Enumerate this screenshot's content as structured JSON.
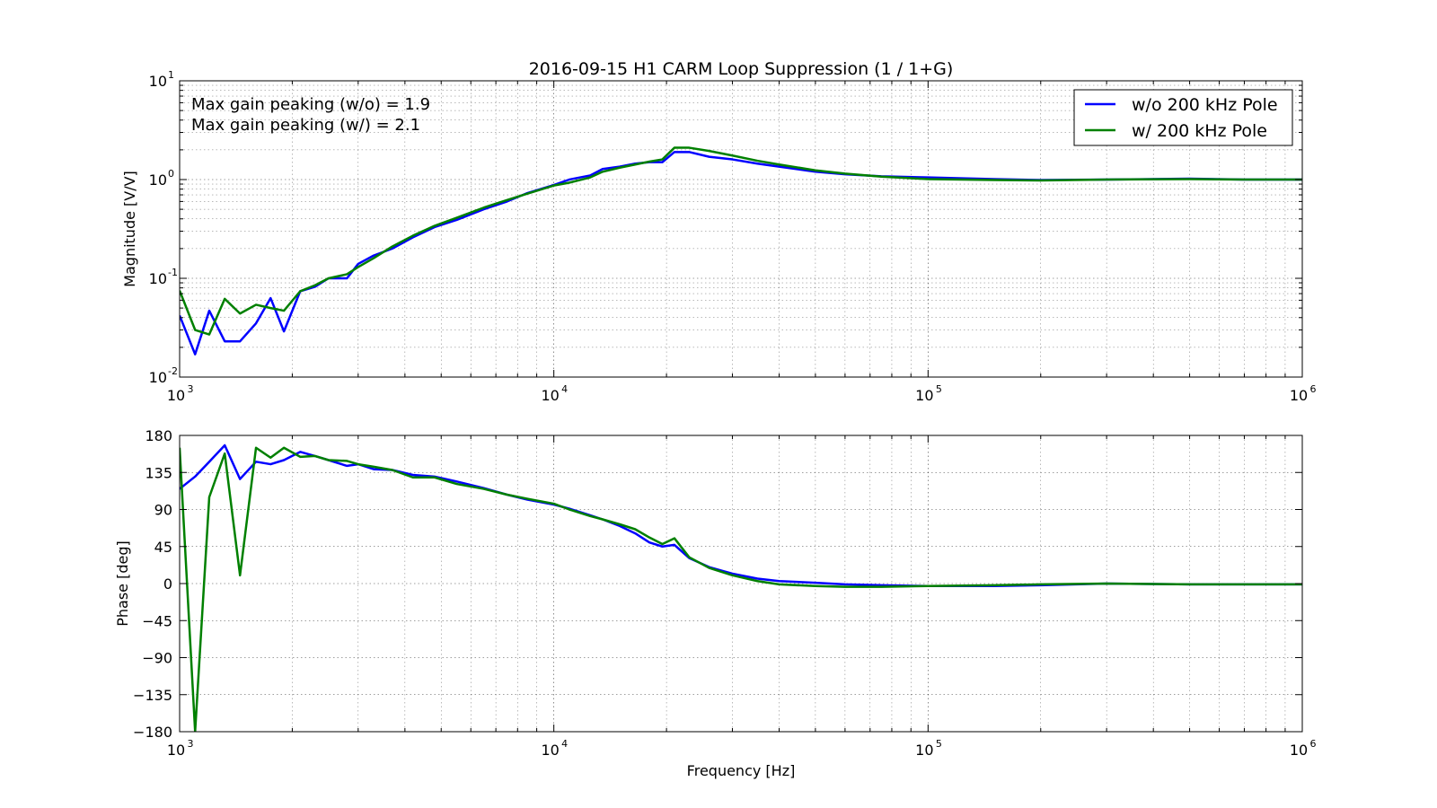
{
  "chart_data": [
    {
      "type": "line",
      "title": "2016-09-15 H1 CARM Loop Suppression (1 / 1+G)",
      "xlabel": "",
      "ylabel": "Magnitude [V/V]",
      "xscale": "log",
      "yscale": "log",
      "xlim": [
        1000,
        1000000
      ],
      "ylim": [
        0.01,
        10
      ],
      "grid": true,
      "legend_placement": "top-right",
      "x_ticks": [
        {
          "base": "10",
          "exp": "3"
        },
        {
          "base": "10",
          "exp": "4"
        },
        {
          "base": "10",
          "exp": "5"
        },
        {
          "base": "10",
          "exp": "6"
        }
      ],
      "y_ticks": [
        {
          "base": "10",
          "exp": "-2"
        },
        {
          "base": "10",
          "exp": "-1"
        },
        {
          "base": "10",
          "exp": "0"
        },
        {
          "base": "10",
          "exp": "1"
        }
      ],
      "annotations": [
        "Max gain peaking (w/o) = 1.9",
        "Max gain peaking (w/) = 2.1"
      ],
      "series": [
        {
          "name": "w/o 200 kHz Pole",
          "color": "#0000ff",
          "points": [
            [
              1000,
              0.042
            ],
            [
              1100,
              0.017
            ],
            [
              1200,
              0.047
            ],
            [
              1320,
              0.023
            ],
            [
              1450,
              0.023
            ],
            [
              1600,
              0.035
            ],
            [
              1750,
              0.063
            ],
            [
              1900,
              0.029
            ],
            [
              2100,
              0.074
            ],
            [
              2300,
              0.082
            ],
            [
              2500,
              0.1
            ],
            [
              2800,
              0.1
            ],
            [
              3000,
              0.14
            ],
            [
              3300,
              0.17
            ],
            [
              3700,
              0.2
            ],
            [
              4200,
              0.26
            ],
            [
              4800,
              0.33
            ],
            [
              5500,
              0.39
            ],
            [
              6500,
              0.5
            ],
            [
              7500,
              0.6
            ],
            [
              8500,
              0.73
            ],
            [
              10000,
              0.88
            ],
            [
              11000,
              1.0
            ],
            [
              12500,
              1.1
            ],
            [
              13500,
              1.28
            ],
            [
              15000,
              1.35
            ],
            [
              16500,
              1.45
            ],
            [
              18000,
              1.5
            ],
            [
              19500,
              1.5
            ],
            [
              21000,
              1.9
            ],
            [
              23000,
              1.9
            ],
            [
              26000,
              1.7
            ],
            [
              30000,
              1.6
            ],
            [
              35000,
              1.45
            ],
            [
              40000,
              1.35
            ],
            [
              50000,
              1.2
            ],
            [
              60000,
              1.13
            ],
            [
              75000,
              1.08
            ],
            [
              100000,
              1.05
            ],
            [
              150000,
              1.01
            ],
            [
              200000,
              0.99
            ],
            [
              300000,
              1.0
            ],
            [
              500000,
              1.02
            ],
            [
              700000,
              1.0
            ],
            [
              1000000,
              1.0
            ]
          ]
        },
        {
          "name": "w/ 200 kHz Pole",
          "color": "#008000",
          "points": [
            [
              1000,
              0.075
            ],
            [
              1100,
              0.03
            ],
            [
              1200,
              0.027
            ],
            [
              1320,
              0.062
            ],
            [
              1450,
              0.044
            ],
            [
              1600,
              0.054
            ],
            [
              1750,
              0.05
            ],
            [
              1900,
              0.047
            ],
            [
              2100,
              0.074
            ],
            [
              2300,
              0.085
            ],
            [
              2500,
              0.1
            ],
            [
              2800,
              0.11
            ],
            [
              3000,
              0.13
            ],
            [
              3300,
              0.16
            ],
            [
              3700,
              0.21
            ],
            [
              4200,
              0.27
            ],
            [
              4800,
              0.34
            ],
            [
              5500,
              0.41
            ],
            [
              6500,
              0.52
            ],
            [
              7500,
              0.62
            ],
            [
              8500,
              0.72
            ],
            [
              10000,
              0.87
            ],
            [
              11000,
              0.93
            ],
            [
              12500,
              1.05
            ],
            [
              13500,
              1.2
            ],
            [
              15000,
              1.32
            ],
            [
              16500,
              1.42
            ],
            [
              18000,
              1.52
            ],
            [
              19500,
              1.6
            ],
            [
              21000,
              2.1
            ],
            [
              23000,
              2.1
            ],
            [
              26000,
              1.95
            ],
            [
              30000,
              1.75
            ],
            [
              35000,
              1.55
            ],
            [
              40000,
              1.42
            ],
            [
              50000,
              1.24
            ],
            [
              60000,
              1.15
            ],
            [
              75000,
              1.07
            ],
            [
              100000,
              1.01
            ],
            [
              150000,
              0.99
            ],
            [
              200000,
              0.98
            ],
            [
              300000,
              1.0
            ],
            [
              500000,
              1.01
            ],
            [
              700000,
              1.0
            ],
            [
              1000000,
              1.0
            ]
          ]
        }
      ]
    },
    {
      "type": "line",
      "title": "",
      "xlabel": "Frequency [Hz]",
      "ylabel": "Phase [deg]",
      "xscale": "log",
      "xlim": [
        1000,
        1000000
      ],
      "ylim": [
        -180,
        180
      ],
      "grid": true,
      "x_ticks": [
        {
          "base": "10",
          "exp": "3"
        },
        {
          "base": "10",
          "exp": "4"
        },
        {
          "base": "10",
          "exp": "5"
        },
        {
          "base": "10",
          "exp": "6"
        }
      ],
      "y_ticks": [
        "−180",
        "−135",
        "−90",
        "−45",
        "0",
        "45",
        "90",
        "135",
        "180"
      ],
      "y_tick_values": [
        -180,
        -135,
        -90,
        -45,
        0,
        45,
        90,
        135,
        180
      ],
      "series": [
        {
          "name": "w/o 200 kHz Pole",
          "color": "#0000ff",
          "points": [
            [
              1000,
              115
            ],
            [
              1100,
              130
            ],
            [
              1200,
              148
            ],
            [
              1320,
              168
            ],
            [
              1450,
              127
            ],
            [
              1600,
              148
            ],
            [
              1750,
              145
            ],
            [
              1900,
              150
            ],
            [
              2100,
              160
            ],
            [
              2300,
              155
            ],
            [
              2500,
              150
            ],
            [
              2800,
              143
            ],
            [
              3000,
              145
            ],
            [
              3300,
              139
            ],
            [
              3700,
              138
            ],
            [
              4200,
              132
            ],
            [
              4800,
              130
            ],
            [
              5500,
              124
            ],
            [
              6500,
              116
            ],
            [
              7500,
              108
            ],
            [
              8500,
              102
            ],
            [
              10000,
              96
            ],
            [
              11000,
              91
            ],
            [
              12500,
              83
            ],
            [
              13500,
              78
            ],
            [
              15000,
              70
            ],
            [
              16500,
              61
            ],
            [
              18000,
              50
            ],
            [
              19500,
              45
            ],
            [
              21000,
              47
            ],
            [
              23000,
              31
            ],
            [
              26000,
              20
            ],
            [
              30000,
              12
            ],
            [
              35000,
              6
            ],
            [
              40000,
              3
            ],
            [
              50000,
              1
            ],
            [
              60000,
              -1
            ],
            [
              75000,
              -2
            ],
            [
              100000,
              -3
            ],
            [
              150000,
              -3
            ],
            [
              200000,
              -2
            ],
            [
              300000,
              0
            ],
            [
              500000,
              -1
            ],
            [
              700000,
              -1
            ],
            [
              1000000,
              -1
            ]
          ]
        },
        {
          "name": "w/ 200 kHz Pole",
          "color": "#008000",
          "points": [
            [
              1000,
              165
            ],
            [
              1100,
              -180
            ],
            [
              1200,
              105
            ],
            [
              1320,
              158
            ],
            [
              1450,
              10
            ],
            [
              1600,
              165
            ],
            [
              1750,
              153
            ],
            [
              1900,
              165
            ],
            [
              2100,
              154
            ],
            [
              2300,
              155
            ],
            [
              2500,
              150
            ],
            [
              2800,
              149
            ],
            [
              3000,
              145
            ],
            [
              3300,
              142
            ],
            [
              3700,
              138
            ],
            [
              4200,
              129
            ],
            [
              4800,
              129
            ],
            [
              5500,
              121
            ],
            [
              6500,
              115
            ],
            [
              7500,
              108
            ],
            [
              8500,
              103
            ],
            [
              10000,
              97
            ],
            [
              11000,
              90
            ],
            [
              12500,
              82
            ],
            [
              13500,
              78
            ],
            [
              15000,
              72
            ],
            [
              16500,
              66
            ],
            [
              18000,
              56
            ],
            [
              19500,
              48
            ],
            [
              21000,
              55
            ],
            [
              23000,
              32
            ],
            [
              26000,
              19
            ],
            [
              30000,
              10
            ],
            [
              35000,
              3
            ],
            [
              40000,
              -1
            ],
            [
              50000,
              -3
            ],
            [
              60000,
              -4
            ],
            [
              75000,
              -4
            ],
            [
              100000,
              -3
            ],
            [
              150000,
              -2
            ],
            [
              200000,
              -1
            ],
            [
              300000,
              0
            ],
            [
              500000,
              -1
            ],
            [
              700000,
              -1
            ],
            [
              1000000,
              -1
            ]
          ]
        }
      ]
    }
  ]
}
